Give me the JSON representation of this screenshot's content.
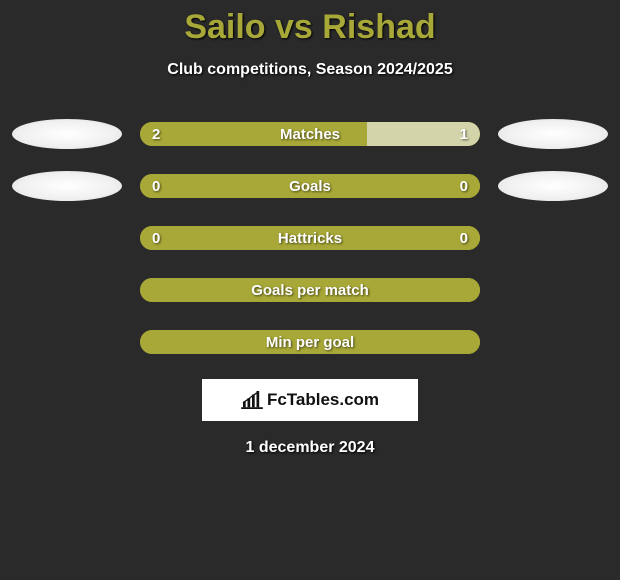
{
  "title": "Sailo vs Rishad",
  "subtitle": "Club competitions, Season 2024/2025",
  "colors": {
    "background": "#2a2a2a",
    "accent": "#a8a838",
    "bar_fill_left": "#a8a838",
    "bar_fill_right": "#d4d4aa",
    "text": "#ffffff",
    "title": "#a8a838"
  },
  "rows": [
    {
      "label": "Matches",
      "left": "2",
      "right": "1",
      "left_pct": 66.7,
      "show_ellipses": true
    },
    {
      "label": "Goals",
      "left": "0",
      "right": "0",
      "left_pct": 100,
      "show_ellipses": true
    },
    {
      "label": "Hattricks",
      "left": "0",
      "right": "0",
      "left_pct": 100,
      "show_ellipses": false
    },
    {
      "label": "Goals per match",
      "left": "",
      "right": "",
      "left_pct": 100,
      "show_ellipses": false
    },
    {
      "label": "Min per goal",
      "left": "",
      "right": "",
      "left_pct": 100,
      "show_ellipses": false
    }
  ],
  "branding": "FcTables.com",
  "date": "1 december 2024"
}
